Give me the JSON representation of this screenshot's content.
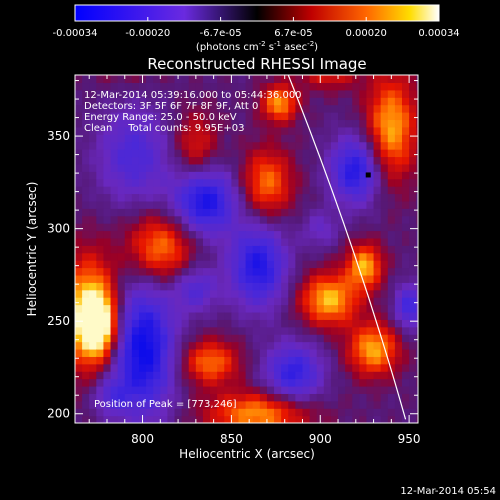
{
  "chart_data": {
    "type": "heatmap",
    "title": "Reconstructed RHESSI Image",
    "xlabel": "Heliocentric X (arcsec)",
    "ylabel": "Heliocentric Y (arcsec)",
    "xlim": [
      762,
      955
    ],
    "ylim": [
      195,
      383
    ],
    "x_ticks": [
      "800",
      "850",
      "900",
      "950"
    ],
    "y_ticks": [
      "200",
      "250",
      "300",
      "350"
    ],
    "colorbar": {
      "range": [
        -0.00034,
        0.00034
      ],
      "tick_labels": [
        "-0.00034",
        "-0.00020",
        "-6.7e-05",
        "6.7e-05",
        "0.00020",
        "0.00034"
      ],
      "unit_label": "(photons cm-2 s-1 asec-2)"
    },
    "annotations": {
      "time": "12-Mar-2014 05:39:16.000 to 05:44:36.000",
      "detectors": "Detectors: 3F 5F 6F 7F 8F 9F, Att 0",
      "energy": "Energy Range: 25.0 - 50.0 keV",
      "clean": "Clean     Total counts: 9.95E+03",
      "peak": "Position of Peak = [773,246]"
    },
    "sources_hot": [
      [
        770,
        255,
        16,
        30,
        1.0
      ],
      [
        775,
        248,
        10,
        16,
        1.0
      ],
      [
        877,
        368,
        10,
        10,
        0.8
      ],
      [
        905,
        262,
        16,
        14,
        0.9
      ],
      [
        925,
        280,
        10,
        12,
        0.85
      ],
      [
        930,
        235,
        14,
        14,
        0.85
      ],
      [
        940,
        355,
        14,
        28,
        0.85
      ],
      [
        905,
        390,
        16,
        12,
        0.7
      ],
      [
        810,
        290,
        18,
        18,
        0.75
      ],
      [
        838,
        228,
        16,
        12,
        0.7
      ],
      [
        865,
        200,
        28,
        12,
        0.8
      ],
      [
        870,
        325,
        14,
        18,
        0.7
      ],
      [
        830,
        345,
        12,
        18,
        0.45
      ],
      [
        790,
        395,
        22,
        14,
        0.3
      ]
    ],
    "sources_cold": [
      [
        800,
        235,
        18,
        35,
        1.0
      ],
      [
        835,
        315,
        18,
        18,
        0.9
      ],
      [
        865,
        280,
        16,
        22,
        0.85
      ],
      [
        830,
        268,
        12,
        12,
        0.5
      ],
      [
        920,
        332,
        14,
        18,
        0.85
      ],
      [
        950,
        258,
        8,
        12,
        0.65
      ],
      [
        885,
        222,
        16,
        16,
        0.75
      ],
      [
        795,
        340,
        20,
        25,
        0.55
      ],
      [
        782,
        210,
        10,
        10,
        0.4
      ],
      [
        900,
        300,
        10,
        10,
        0.3
      ]
    ],
    "limb": {
      "x_top": 882,
      "y_top": 383,
      "x_bottom": 948,
      "y_bottom": 197
    },
    "marker": [
      927,
      329
    ],
    "footer_timestamp": "12-Mar-2014 05:54"
  }
}
